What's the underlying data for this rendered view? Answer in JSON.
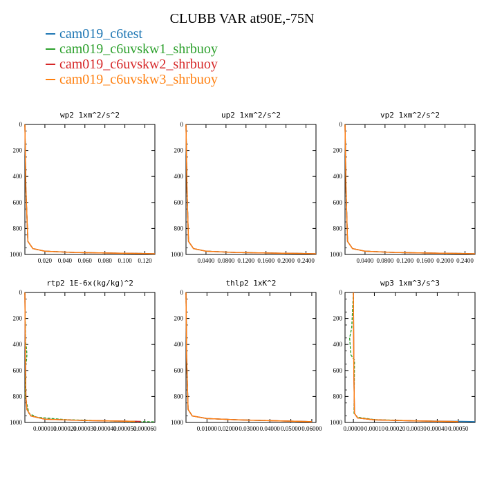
{
  "figure": {
    "title": "CLUBB VAR at90E,-75N"
  },
  "legend": [
    {
      "name": "cam019_c6test",
      "color": "#1f77b4"
    },
    {
      "name": "cam019_c6uvskw1_shrbuoy",
      "color": "#2ca02c"
    },
    {
      "name": "cam019_c6uvskw2_shrbuoy",
      "color": "#d62728"
    },
    {
      "name": "cam019_c6uvskw3_shrbuoy",
      "color": "#ff7f0e"
    }
  ],
  "chart_data": [
    {
      "type": "line",
      "title": "wp2  1xm^2/s^2",
      "xlim": [
        0,
        0.13
      ],
      "ylim": [
        1000,
        0
      ],
      "xticks": [
        "0.020",
        "0.040",
        "0.060",
        "0.080",
        "0.100",
        "0.120"
      ],
      "xtick_values": [
        0.02,
        0.04,
        0.06,
        0.08,
        0.1,
        0.12
      ],
      "yticks": [
        0,
        200,
        400,
        600,
        800,
        1000
      ],
      "series": [
        {
          "color": "#1f77b4",
          "x": [
            0,
            0.001,
            0.003,
            0.008,
            0.02,
            0.05,
            0.09,
            0.12,
            0.13
          ],
          "y": [
            0,
            500,
            900,
            955,
            975,
            985,
            990,
            993,
            995
          ]
        },
        {
          "color": "#2ca02c",
          "x": [
            0,
            0.001,
            0.003,
            0.008,
            0.02,
            0.05,
            0.09,
            0.12,
            0.13
          ],
          "y": [
            0,
            500,
            900,
            955,
            975,
            985,
            990,
            993,
            995
          ]
        },
        {
          "color": "#d62728",
          "x": [
            0,
            0.001,
            0.003,
            0.008,
            0.02,
            0.05,
            0.09,
            0.12,
            0.13
          ],
          "y": [
            0,
            500,
            900,
            955,
            975,
            985,
            990,
            993,
            995
          ]
        },
        {
          "color": "#ff7f0e",
          "x": [
            0,
            0.001,
            0.003,
            0.008,
            0.02,
            0.05,
            0.09,
            0.12,
            0.13
          ],
          "y": [
            0,
            500,
            900,
            955,
            975,
            985,
            990,
            993,
            995
          ]
        }
      ]
    },
    {
      "type": "line",
      "title": "up2  1xm^2/s^2",
      "xlim": [
        0,
        0.26
      ],
      "ylim": [
        1000,
        0
      ],
      "xticks": [
        "0.0400",
        "0.0800",
        "0.1200",
        "0.1600",
        "0.2000",
        "0.2400"
      ],
      "xtick_values": [
        0.04,
        0.08,
        0.12,
        0.16,
        0.2,
        0.24
      ],
      "yticks": [
        0,
        200,
        400,
        600,
        800,
        1000
      ],
      "series": [
        {
          "color": "#1f77b4",
          "x": [
            0,
            0.002,
            0.005,
            0.015,
            0.04,
            0.1,
            0.18,
            0.24,
            0.26
          ],
          "y": [
            0,
            500,
            900,
            955,
            975,
            985,
            990,
            993,
            995
          ]
        },
        {
          "color": "#2ca02c",
          "x": [
            0,
            0.002,
            0.005,
            0.015,
            0.04,
            0.1,
            0.18,
            0.24,
            0.26
          ],
          "y": [
            0,
            500,
            900,
            955,
            975,
            985,
            990,
            993,
            995
          ]
        },
        {
          "color": "#d62728",
          "x": [
            0,
            0.002,
            0.005,
            0.015,
            0.04,
            0.1,
            0.18,
            0.24,
            0.26
          ],
          "y": [
            0,
            500,
            900,
            955,
            975,
            985,
            990,
            993,
            995
          ]
        },
        {
          "color": "#ff7f0e",
          "x": [
            0,
            0.002,
            0.005,
            0.015,
            0.04,
            0.1,
            0.18,
            0.24,
            0.26
          ],
          "y": [
            0,
            500,
            900,
            955,
            975,
            985,
            990,
            993,
            995
          ]
        }
      ]
    },
    {
      "type": "line",
      "title": "vp2  1xm^2/s^2",
      "xlim": [
        0,
        0.26
      ],
      "ylim": [
        1000,
        0
      ],
      "xticks": [
        "0.0400",
        "0.0800",
        "0.1200",
        "0.1600",
        "0.2000",
        "0.2400"
      ],
      "xtick_values": [
        0.04,
        0.08,
        0.12,
        0.16,
        0.2,
        0.24
      ],
      "yticks": [
        0,
        200,
        400,
        600,
        800,
        1000
      ],
      "series": [
        {
          "color": "#1f77b4",
          "x": [
            0,
            0.002,
            0.005,
            0.015,
            0.04,
            0.1,
            0.18,
            0.24,
            0.26
          ],
          "y": [
            0,
            500,
            900,
            955,
            975,
            985,
            990,
            993,
            995
          ]
        },
        {
          "color": "#2ca02c",
          "x": [
            0,
            0.002,
            0.005,
            0.015,
            0.04,
            0.1,
            0.18,
            0.24,
            0.26
          ],
          "y": [
            0,
            500,
            900,
            955,
            975,
            985,
            990,
            993,
            995
          ]
        },
        {
          "color": "#d62728",
          "x": [
            0,
            0.002,
            0.005,
            0.015,
            0.04,
            0.1,
            0.18,
            0.24,
            0.26
          ],
          "y": [
            0,
            500,
            900,
            955,
            975,
            985,
            990,
            993,
            995
          ]
        },
        {
          "color": "#ff7f0e",
          "x": [
            0,
            0.002,
            0.005,
            0.015,
            0.04,
            0.1,
            0.18,
            0.24,
            0.26
          ],
          "y": [
            0,
            500,
            900,
            955,
            975,
            985,
            990,
            993,
            995
          ]
        }
      ]
    },
    {
      "type": "line",
      "title": "rtp2  1E-6x(kg/kg)^2",
      "xlim": [
        0,
        6.5e-05
      ],
      "ylim": [
        1000,
        0
      ],
      "xticks": [
        "0.000010",
        "0.000020",
        "0.000030",
        "0.000040",
        "0.000050",
        "0.000060"
      ],
      "xtick_values": [
        1e-05,
        2e-05,
        3e-05,
        4e-05,
        5e-05,
        6e-05
      ],
      "yticks": [
        0,
        200,
        400,
        600,
        800,
        1000
      ],
      "series": [
        {
          "color": "#1f77b4",
          "x": [
            0,
            2e-07,
            5e-07,
            1e-06,
            3e-06,
            1e-05,
            3e-05,
            5e-05,
            5.6e-05
          ],
          "y": [
            0,
            400,
            800,
            900,
            950,
            975,
            985,
            990,
            992
          ]
        },
        {
          "color": "#2ca02c",
          "x": [
            0,
            3e-07,
            8e-07,
            1e-06,
            8e-07,
            3e-07,
            2e-07,
            2e-06,
            6e-06,
            2e-05,
            4e-05,
            5.5e-05,
            6.5e-05
          ],
          "y": [
            0,
            380,
            430,
            480,
            520,
            560,
            800,
            930,
            960,
            978,
            988,
            993,
            995
          ]
        },
        {
          "color": "#d62728",
          "x": [
            0,
            2e-07,
            5e-07,
            1e-06,
            3e-06,
            1e-05,
            3e-05,
            5e-05,
            5.8e-05
          ],
          "y": [
            0,
            400,
            800,
            900,
            950,
            975,
            985,
            990,
            992
          ]
        },
        {
          "color": "#ff7f0e",
          "x": [
            0,
            2e-07,
            5e-07,
            1e-06,
            3e-06,
            1e-05,
            3e-05,
            5e-05,
            5.5e-05
          ],
          "y": [
            0,
            400,
            800,
            900,
            950,
            975,
            985,
            990,
            992
          ]
        }
      ]
    },
    {
      "type": "line",
      "title": "thlp2  1xK^2",
      "xlim": [
        0,
        0.062
      ],
      "ylim": [
        1000,
        0
      ],
      "xticks": [
        "0.01000",
        "0.02000",
        "0.03000",
        "0.04000",
        "0.05000",
        "0.06000"
      ],
      "xtick_values": [
        0.01,
        0.02,
        0.03,
        0.04,
        0.05,
        0.06
      ],
      "yticks": [
        0,
        200,
        400,
        600,
        800,
        1000
      ],
      "series": [
        {
          "color": "#1f77b4",
          "x": [
            0,
            0.0003,
            0.001,
            0.003,
            0.01,
            0.025,
            0.045,
            0.06
          ],
          "y": [
            0,
            500,
            900,
            950,
            970,
            980,
            988,
            994
          ]
        },
        {
          "color": "#2ca02c",
          "x": [
            0,
            0.0003,
            0.001,
            0.003,
            0.01,
            0.025,
            0.045,
            0.06
          ],
          "y": [
            0,
            500,
            900,
            950,
            970,
            980,
            988,
            994
          ]
        },
        {
          "color": "#d62728",
          "x": [
            0,
            0.0003,
            0.001,
            0.003,
            0.01,
            0.025,
            0.045,
            0.06
          ],
          "y": [
            0,
            500,
            900,
            950,
            970,
            980,
            988,
            994
          ]
        },
        {
          "color": "#ff7f0e",
          "x": [
            0,
            0.0003,
            0.001,
            0.003,
            0.01,
            0.025,
            0.045,
            0.06
          ],
          "y": [
            0,
            500,
            900,
            950,
            970,
            980,
            988,
            994
          ]
        }
      ]
    },
    {
      "type": "line",
      "title": "wp3  1xm^3/s^3",
      "xlim": [
        -4e-05,
        0.00058
      ],
      "ylim": [
        1000,
        0
      ],
      "xticks": [
        "0.00000",
        "0.00010",
        "0.00020",
        "0.00030",
        "0.00040",
        "0.00050"
      ],
      "xtick_values": [
        0.0,
        0.0001,
        0.0002,
        0.0003,
        0.0004,
        0.0005
      ],
      "yticks": [
        0,
        200,
        400,
        600,
        800,
        1000
      ],
      "series": [
        {
          "color": "#1f77b4",
          "x": [
            0,
            2e-06,
            5e-06,
            2e-05,
            0.0001,
            0.0003,
            0.00052,
            0.00058
          ],
          "y": [
            0,
            600,
            930,
            965,
            980,
            988,
            992,
            994
          ]
        },
        {
          "color": "#2ca02c",
          "x": [
            0,
            -8e-06,
            -1.8e-05,
            -1.2e-05,
            5e-06,
            3e-06,
            2e-05,
            0.0001,
            0.0003,
            0.00045
          ],
          "y": [
            0,
            270,
            350,
            480,
            520,
            930,
            960,
            978,
            988,
            992
          ]
        },
        {
          "color": "#d62728",
          "x": [
            0,
            2e-06,
            5e-06,
            2e-05,
            0.0001,
            0.0003,
            0.00045,
            0.0005
          ],
          "y": [
            0,
            600,
            930,
            965,
            980,
            988,
            992,
            994
          ]
        },
        {
          "color": "#ff7f0e",
          "x": [
            0,
            2e-06,
            5e-06,
            2e-05,
            0.0001,
            0.0003,
            0.00045,
            0.0005
          ],
          "y": [
            0,
            600,
            930,
            965,
            980,
            988,
            992,
            994
          ]
        }
      ]
    }
  ]
}
